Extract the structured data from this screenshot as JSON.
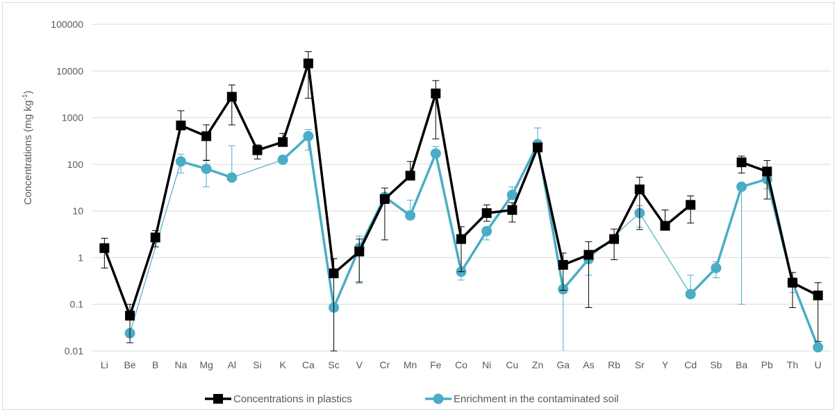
{
  "chart_data": {
    "type": "line",
    "title": "",
    "xlabel": "",
    "ylabel": "Concentrations (mg kg",
    "ylabel_superscript": "-1",
    "ylabel_suffix": ")",
    "yscale": "log",
    "ylim": [
      0.01,
      100000
    ],
    "yticks": [
      "0.01",
      "0.1",
      "1",
      "10",
      "100",
      "1000",
      "10000",
      "100000"
    ],
    "grid": true,
    "legend_position": "bottom",
    "categories": [
      "Li",
      "Be",
      "B",
      "Na",
      "Mg",
      "Al",
      "Si",
      "K",
      "Ca",
      "Sc",
      "V",
      "Cr",
      "Mn",
      "Fe",
      "Co",
      "Ni",
      "Cu",
      "Zn",
      "Ga",
      "As",
      "Rb",
      "Sr",
      "Y",
      "Cd",
      "Sb",
      "Ba",
      "Pb",
      "Th",
      "U"
    ],
    "series": [
      {
        "name": "Concentrations in plastics",
        "color": "#000000",
        "marker": "square",
        "values": [
          1.6,
          0.057,
          2.7,
          680,
          400,
          2800,
          200,
          300,
          14500,
          0.46,
          1.35,
          18,
          57,
          3300,
          2.5,
          9,
          10.5,
          230,
          0.7,
          1.15,
          2.5,
          29,
          4.8,
          13.5,
          null,
          110,
          70,
          0.29,
          0.155
        ],
        "err_low": [
          0.6,
          0.015,
          1.7,
          null,
          120,
          700,
          130,
          null,
          2600,
          0.01,
          0.3,
          2.4,
          null,
          350,
          0.5,
          6,
          5.8,
          null,
          0.2,
          0.085,
          0.9,
          4,
          null,
          5.5,
          null,
          65,
          18,
          0.085,
          0.016
        ],
        "err_high": [
          2.6,
          0.1,
          3.8,
          1400,
          700,
          5000,
          260,
          460,
          26000,
          0.95,
          2.5,
          31,
          115,
          6200,
          4.6,
          13.5,
          15,
          null,
          1.25,
          2.2,
          4.1,
          53,
          10.5,
          21,
          null,
          150,
          120,
          0.48,
          0.29
        ]
      },
      {
        "name": "Enrichment in the contaminated soil",
        "color": "#4bacc6",
        "marker": "circle",
        "values": [
          null,
          0.024,
          null,
          115,
          80,
          52,
          null,
          125,
          400,
          0.085,
          1.6,
          20,
          8,
          170,
          0.5,
          3.7,
          22,
          270,
          0.21,
          0.93,
          null,
          9,
          null,
          0.165,
          0.6,
          33,
          48,
          0.3,
          0.012
        ],
        "err_low": [
          null,
          null,
          null,
          65,
          33,
          null,
          null,
          null,
          200,
          null,
          0.28,
          null,
          null,
          null,
          0.33,
          2.4,
          null,
          null,
          0.0001,
          0.42,
          null,
          4.5,
          null,
          null,
          0.37,
          0.1,
          30,
          0.18,
          null
        ],
        "err_high": [
          null,
          null,
          null,
          165,
          125,
          250,
          null,
          null,
          560,
          null,
          2.9,
          null,
          17,
          240,
          0.58,
          null,
          33,
          600,
          null,
          null,
          4.2,
          13,
          null,
          0.42,
          0.82,
          null,
          null,
          null,
          null
        ],
        "connect_across_gaps": true
      }
    ]
  }
}
